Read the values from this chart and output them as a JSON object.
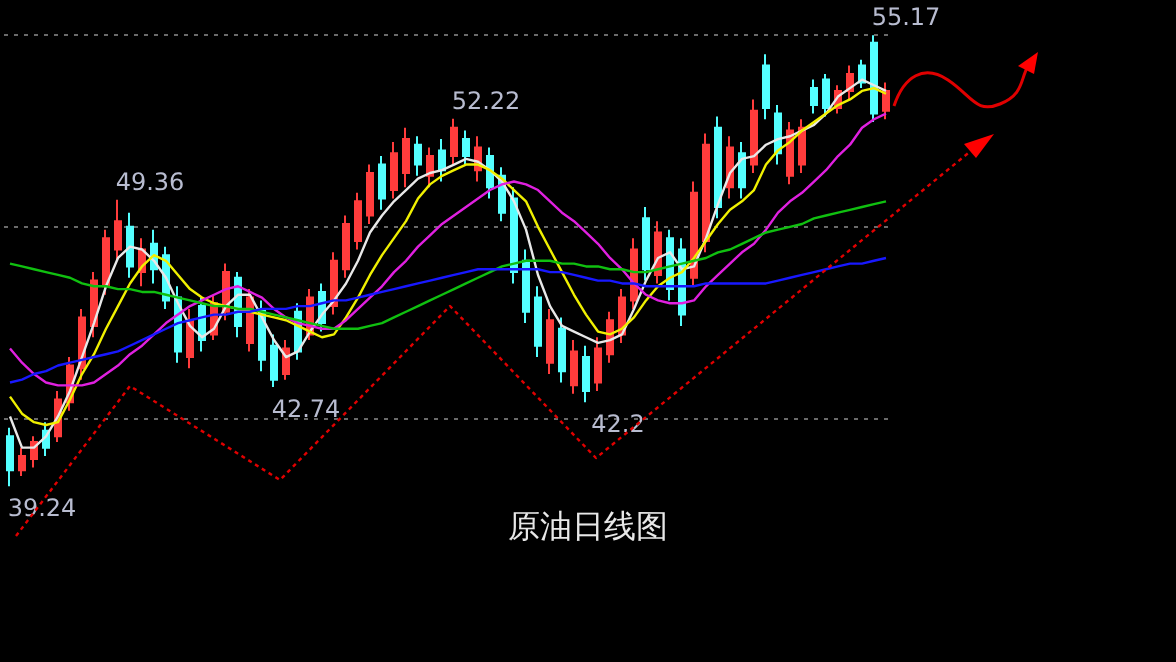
{
  "chart_data": {
    "type": "candlestick",
    "title": "原油日线图",
    "categories": [
      null,
      null,
      null,
      null,
      null,
      null,
      null,
      null,
      null,
      null,
      null,
      null,
      null,
      null,
      null,
      null,
      null,
      null,
      null,
      null,
      null,
      null,
      null,
      null,
      null,
      null,
      null,
      null,
      null,
      null,
      null,
      null,
      null,
      null,
      null,
      null,
      null,
      null,
      null,
      null,
      null,
      null,
      null,
      null,
      null,
      null,
      null,
      null,
      null,
      null,
      null,
      null,
      null,
      null,
      null,
      null,
      null,
      null,
      null,
      null,
      null,
      null,
      null,
      null,
      null,
      null,
      null,
      null,
      null,
      null,
      null,
      null,
      null,
      null
    ],
    "ohlc": [
      [
        41.0,
        41.3,
        39.24,
        39.8
      ],
      [
        39.8,
        40.6,
        39.6,
        40.3
      ],
      [
        40.2,
        41.0,
        39.9,
        40.8
      ],
      [
        41.2,
        41.5,
        40.3,
        40.6
      ],
      [
        41.0,
        42.6,
        40.8,
        42.3
      ],
      [
        42.2,
        43.8,
        41.9,
        43.5
      ],
      [
        43.4,
        45.5,
        43.0,
        45.2
      ],
      [
        44.9,
        46.8,
        44.5,
        46.5
      ],
      [
        46.3,
        48.3,
        46.0,
        48.0
      ],
      [
        47.6,
        49.36,
        47.2,
        48.6
      ],
      [
        48.4,
        48.9,
        46.6,
        47.0
      ],
      [
        46.8,
        48.0,
        46.3,
        47.6
      ],
      [
        47.8,
        48.3,
        46.4,
        46.9
      ],
      [
        47.4,
        47.7,
        45.5,
        45.8
      ],
      [
        45.9,
        46.3,
        43.6,
        44.0
      ],
      [
        43.8,
        45.5,
        43.4,
        45.1
      ],
      [
        45.6,
        45.9,
        44.0,
        44.4
      ],
      [
        44.6,
        46.0,
        44.4,
        45.7
      ],
      [
        45.4,
        47.1,
        45.1,
        46.8
      ],
      [
        46.6,
        46.8,
        44.5,
        44.9
      ],
      [
        44.3,
        46.2,
        44.0,
        45.9
      ],
      [
        45.5,
        45.8,
        43.3,
        43.7
      ],
      [
        44.2,
        44.6,
        42.74,
        43.0
      ],
      [
        43.2,
        44.4,
        43.0,
        44.1
      ],
      [
        45.4,
        45.7,
        43.7,
        44.0
      ],
      [
        44.6,
        46.2,
        44.4,
        45.9
      ],
      [
        46.1,
        46.4,
        44.7,
        45.0
      ],
      [
        45.6,
        47.5,
        45.3,
        47.2
      ],
      [
        46.9,
        48.8,
        46.6,
        48.5
      ],
      [
        47.9,
        49.6,
        47.6,
        49.3
      ],
      [
        48.8,
        50.6,
        48.5,
        50.3
      ],
      [
        50.6,
        50.9,
        49.0,
        49.4
      ],
      [
        49.7,
        51.4,
        49.4,
        51.0
      ],
      [
        50.3,
        51.9,
        49.8,
        51.5
      ],
      [
        51.3,
        51.6,
        50.2,
        50.6
      ],
      [
        50.2,
        51.2,
        49.8,
        50.9
      ],
      [
        51.1,
        51.5,
        50.0,
        50.4
      ],
      [
        50.9,
        52.22,
        50.6,
        51.9
      ],
      [
        51.5,
        51.8,
        50.6,
        50.9
      ],
      [
        50.4,
        51.6,
        50.0,
        51.2
      ],
      [
        50.9,
        51.2,
        49.4,
        49.8
      ],
      [
        50.2,
        50.5,
        48.6,
        48.9
      ],
      [
        49.4,
        49.8,
        46.4,
        46.8
      ],
      [
        47.2,
        47.6,
        45.0,
        45.4
      ],
      [
        45.9,
        46.3,
        43.8,
        44.2
      ],
      [
        43.6,
        45.5,
        43.2,
        45.1
      ],
      [
        44.8,
        45.2,
        42.9,
        43.3
      ],
      [
        42.8,
        44.4,
        42.5,
        44.0
      ],
      [
        43.8,
        44.2,
        42.2,
        42.6
      ],
      [
        42.9,
        44.5,
        42.6,
        44.1
      ],
      [
        43.9,
        45.4,
        43.6,
        45.1
      ],
      [
        44.6,
        46.2,
        44.3,
        45.9
      ],
      [
        45.8,
        48.0,
        45.5,
        47.6
      ],
      [
        48.7,
        49.1,
        46.5,
        46.9
      ],
      [
        46.7,
        48.6,
        46.4,
        48.2
      ],
      [
        48.0,
        48.3,
        45.8,
        46.2
      ],
      [
        47.6,
        48.0,
        44.9,
        45.3
      ],
      [
        46.6,
        50.0,
        46.3,
        49.6
      ],
      [
        47.9,
        51.7,
        47.5,
        51.3
      ],
      [
        51.9,
        52.3,
        48.7,
        49.1
      ],
      [
        49.8,
        51.6,
        49.4,
        51.2
      ],
      [
        51.0,
        51.4,
        49.4,
        49.8
      ],
      [
        50.6,
        52.9,
        50.3,
        52.5
      ],
      [
        54.1,
        54.5,
        52.2,
        52.6
      ],
      [
        52.4,
        52.7,
        50.6,
        51.0
      ],
      [
        50.2,
        52.1,
        49.9,
        51.8
      ],
      [
        50.6,
        52.2,
        50.3,
        51.9
      ],
      [
        53.3,
        53.6,
        52.4,
        52.7
      ],
      [
        53.6,
        53.8,
        52.3,
        52.6
      ],
      [
        52.6,
        53.4,
        52.4,
        53.2
      ],
      [
        53.2,
        54.1,
        52.9,
        53.8
      ],
      [
        54.1,
        54.3,
        53.3,
        53.5
      ],
      [
        54.9,
        55.17,
        52.1,
        52.4
      ],
      [
        52.5,
        53.5,
        52.2,
        53.2
      ]
    ],
    "colors": [
      "#54ffff",
      "#ff3c3c",
      "#ff3c3c",
      "#54ffff",
      "#ff3c3c",
      "#ff3c3c",
      "#ff3c3c",
      "#ff3c3c",
      "#ff3c3c",
      "#ff3c3c",
      "#54ffff",
      "#ff3c3c",
      "#54ffff",
      "#54ffff",
      "#54ffff",
      "#ff3c3c",
      "#54ffff",
      "#ff3c3c",
      "#ff3c3c",
      "#54ffff",
      "#ff3c3c",
      "#54ffff",
      "#54ffff",
      "#ff3c3c",
      "#54ffff",
      "#ff3c3c",
      "#54ffff",
      "#ff3c3c",
      "#ff3c3c",
      "#ff3c3c",
      "#ff3c3c",
      "#54ffff",
      "#ff3c3c",
      "#ff3c3c",
      "#54ffff",
      "#ff3c3c",
      "#54ffff",
      "#ff3c3c",
      "#54ffff",
      "#ff3c3c",
      "#54ffff",
      "#54ffff",
      "#54ffff",
      "#54ffff",
      "#54ffff",
      "#ff3c3c",
      "#54ffff",
      "#ff3c3c",
      "#54ffff",
      "#ff3c3c",
      "#ff3c3c",
      "#ff3c3c",
      "#ff3c3c",
      "#54ffff",
      "#ff3c3c",
      "#54ffff",
      "#54ffff",
      "#ff3c3c",
      "#ff3c3c",
      "#54ffff",
      "#ff3c3c",
      "#54ffff",
      "#ff3c3c",
      "#54ffff",
      "#54ffff",
      "#ff3c3c",
      "#ff3c3c",
      "#54ffff",
      "#54ffff",
      "#ff3c3c",
      "#ff3c3c",
      "#54ffff",
      "#54ffff",
      "#ff3c3c"
    ],
    "series": [
      {
        "type": "line",
        "color": "#e8e8e8",
        "values": [
          41.7,
          40.6,
          40.6,
          41.0,
          41.7,
          42.6,
          43.8,
          45.0,
          46.3,
          47.3,
          47.7,
          47.6,
          47.2,
          46.6,
          45.7,
          44.9,
          44.5,
          44.8,
          45.6,
          46.0,
          46.0,
          45.2,
          44.4,
          43.8,
          44.0,
          44.7,
          45.3,
          45.8,
          46.4,
          47.2,
          48.2,
          48.8,
          49.3,
          49.7,
          50.1,
          50.3,
          50.4,
          50.6,
          50.8,
          50.7,
          50.4,
          50.0,
          49.3,
          48.3,
          46.7,
          45.6,
          44.9,
          44.7,
          44.5,
          44.3,
          44.4,
          44.6,
          45.5,
          46.5,
          47.3,
          47.5,
          46.9,
          47.0,
          48.0,
          49.2,
          50.3,
          50.8,
          50.9,
          51.3,
          51.5,
          51.6,
          51.8,
          52.0,
          52.4,
          53.0,
          53.3,
          53.6,
          53.4,
          53.2
        ]
      },
      {
        "type": "line",
        "color": "#f0f000",
        "values": [
          42.4,
          41.8,
          41.5,
          41.4,
          41.5,
          42.3,
          43.2,
          43.9,
          44.8,
          45.6,
          46.4,
          47.0,
          47.4,
          47.2,
          46.7,
          46.2,
          45.9,
          45.7,
          45.6,
          45.5,
          45.4,
          45.3,
          45.2,
          45.1,
          44.9,
          44.7,
          44.5,
          44.6,
          45.2,
          45.9,
          46.7,
          47.4,
          48.0,
          48.6,
          49.4,
          49.9,
          50.2,
          50.4,
          50.6,
          50.6,
          50.4,
          50.1,
          49.7,
          49.3,
          48.4,
          47.6,
          46.8,
          46.0,
          45.3,
          44.7,
          44.6,
          44.8,
          45.2,
          45.8,
          46.3,
          46.6,
          46.8,
          47.3,
          47.9,
          48.5,
          49.0,
          49.3,
          49.7,
          50.6,
          51.1,
          51.4,
          51.8,
          52.1,
          52.4,
          52.7,
          52.9,
          53.2,
          53.3,
          53.1
        ]
      },
      {
        "type": "line",
        "color": "#e020e0",
        "values": [
          44.1,
          43.6,
          43.2,
          42.9,
          42.8,
          42.8,
          42.8,
          42.9,
          43.2,
          43.5,
          43.9,
          44.2,
          44.6,
          45.0,
          45.3,
          45.6,
          45.8,
          46.0,
          46.2,
          46.3,
          46.1,
          45.9,
          45.5,
          45.2,
          45.0,
          44.9,
          44.8,
          44.8,
          45.1,
          45.5,
          45.9,
          46.3,
          46.8,
          47.2,
          47.7,
          48.1,
          48.5,
          48.8,
          49.1,
          49.4,
          49.7,
          49.9,
          50.0,
          49.9,
          49.7,
          49.3,
          48.9,
          48.6,
          48.2,
          47.8,
          47.3,
          46.9,
          46.4,
          46.0,
          45.8,
          45.7,
          45.7,
          45.8,
          46.3,
          46.7,
          47.1,
          47.5,
          47.8,
          48.3,
          48.9,
          49.3,
          49.6,
          50.0,
          50.4,
          50.9,
          51.3,
          51.9,
          52.2,
          52.4
        ]
      },
      {
        "type": "line",
        "color": "#10c010",
        "values": [
          47.1,
          47.0,
          46.9,
          46.8,
          46.7,
          46.6,
          46.4,
          46.3,
          46.3,
          46.2,
          46.2,
          46.1,
          46.1,
          46.0,
          45.9,
          45.8,
          45.7,
          45.6,
          45.6,
          45.5,
          45.5,
          45.4,
          45.3,
          45.2,
          45.1,
          45.0,
          44.9,
          44.8,
          44.8,
          44.8,
          44.9,
          45.0,
          45.2,
          45.4,
          45.6,
          45.8,
          46.0,
          46.2,
          46.4,
          46.6,
          46.8,
          47.0,
          47.1,
          47.2,
          47.2,
          47.2,
          47.1,
          47.1,
          47.0,
          47.0,
          46.9,
          46.9,
          46.8,
          46.8,
          46.9,
          47.0,
          47.1,
          47.2,
          47.3,
          47.5,
          47.6,
          47.8,
          48.0,
          48.2,
          48.3,
          48.4,
          48.5,
          48.7,
          48.8,
          48.9,
          49.0,
          49.1,
          49.2,
          49.3
        ]
      },
      {
        "type": "line",
        "color": "#1818ff",
        "values": [
          42.9,
          43.0,
          43.2,
          43.3,
          43.5,
          43.6,
          43.7,
          43.8,
          43.9,
          44.0,
          44.2,
          44.4,
          44.6,
          44.8,
          45.0,
          45.1,
          45.2,
          45.3,
          45.3,
          45.4,
          45.4,
          45.5,
          45.5,
          45.5,
          45.6,
          45.6,
          45.7,
          45.8,
          45.8,
          45.9,
          46.0,
          46.1,
          46.2,
          46.3,
          46.4,
          46.5,
          46.6,
          46.7,
          46.8,
          46.9,
          46.9,
          46.9,
          46.9,
          46.9,
          46.9,
          46.8,
          46.8,
          46.7,
          46.6,
          46.5,
          46.5,
          46.4,
          46.4,
          46.3,
          46.3,
          46.3,
          46.3,
          46.3,
          46.4,
          46.4,
          46.4,
          46.4,
          46.4,
          46.4,
          46.5,
          46.6,
          46.7,
          46.8,
          46.9,
          47.0,
          47.1,
          47.1,
          47.2,
          47.3
        ]
      }
    ],
    "annotations": [
      "39.24",
      "49.36",
      "42.74",
      "52.22",
      "42.2",
      "55.17"
    ],
    "yticks": [
      {
        "value": 41.6,
        "label": null
      },
      {
        "value": 48.4,
        "label": null
      },
      {
        "value": 55.2,
        "label": null
      }
    ],
    "grid": "y",
    "line_style": "solid"
  }
}
